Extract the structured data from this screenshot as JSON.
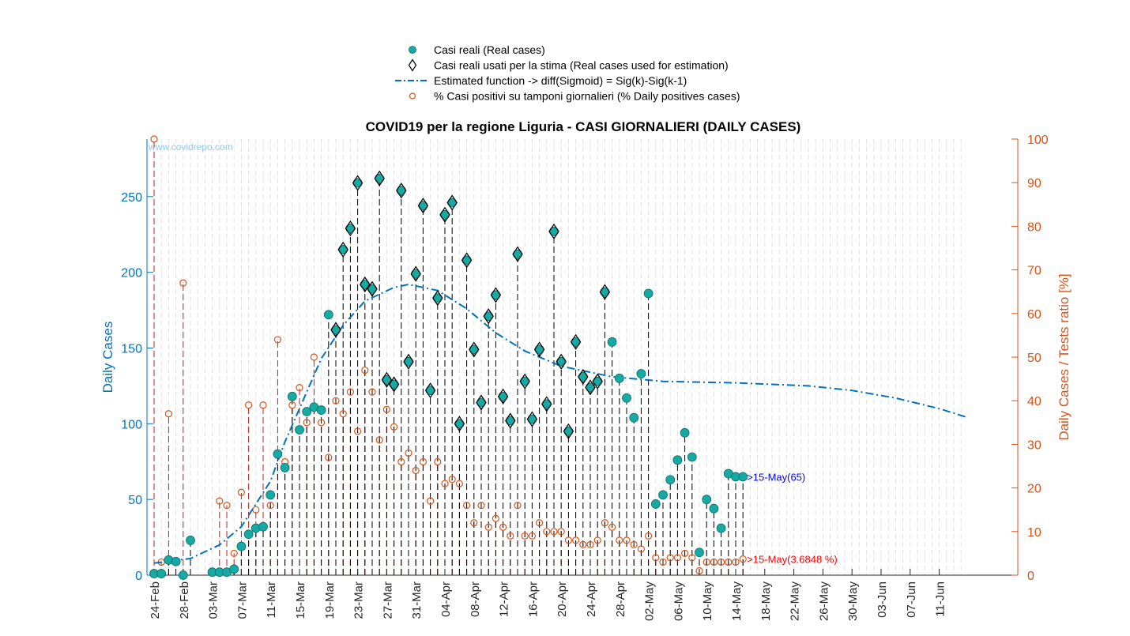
{
  "chart_data": {
    "type": "scatter",
    "title": "COVID19 per la regione Liguria - CASI GIORNALIERI (DAILY CASES)",
    "watermark": "www.covidrepo.com",
    "ylabel": "Daily Cases",
    "y2label": "Daily Cases / Tests ratio [%]",
    "xlabel": "",
    "ylim": [
      0,
      288
    ],
    "y2lim": [
      0,
      100
    ],
    "yticks": [
      0,
      50,
      100,
      150,
      200,
      250
    ],
    "y2ticks": [
      0,
      10,
      20,
      30,
      40,
      50,
      60,
      70,
      80,
      90,
      100
    ],
    "xtick_labels": [
      "24-Feb",
      "28-Feb",
      "03-Mar",
      "07-Mar",
      "11-Mar",
      "15-Mar",
      "19-Mar",
      "23-Mar",
      "27-Mar",
      "31-Mar",
      "04-Apr",
      "08-Apr",
      "12-Apr",
      "16-Apr",
      "20-Apr",
      "24-Apr",
      "28-Apr",
      "02-May",
      "06-May",
      "10-May",
      "14-May",
      "18-May",
      "22-May",
      "26-May",
      "30-May",
      "03-Jun",
      "07-Jun",
      "11-Jun"
    ],
    "legend_position": "top",
    "legend": [
      {
        "label": "Casi reali (Real cases)",
        "marker": "filled-circle",
        "color": "#17a9a3"
      },
      {
        "label": "Casi reali usati per la stima (Real cases used for estimation)",
        "marker": "diamond",
        "color": "#000000"
      },
      {
        "label": "Estimated function -> diff(Sigmoid) = Sig(k)-Sig(k-1)",
        "marker": "dash-dot-line",
        "color": "#0072bd"
      },
      {
        "label": "% Casi positivi su tamponi giornalieri (% Daily positives cases)",
        "marker": "open-circle",
        "color": "#d95319"
      }
    ],
    "grid": false,
    "x_start_date": "24-Feb",
    "series": [
      {
        "name": "Casi reali (Real cases)",
        "values": [
          1,
          1,
          10,
          9,
          0,
          23,
          null,
          null,
          2,
          2,
          2,
          4,
          19,
          27,
          31,
          32,
          53,
          80,
          71,
          118,
          96,
          108,
          111,
          109,
          172,
          null,
          null,
          null,
          null,
          null,
          null,
          null,
          null,
          null,
          null,
          null,
          null,
          null,
          null,
          null,
          null,
          null,
          null,
          null,
          null,
          null,
          null,
          null,
          null,
          null,
          null,
          null,
          null,
          null,
          null,
          null,
          null,
          null,
          null,
          null,
          null,
          null,
          null,
          154,
          130,
          117,
          104,
          133,
          186,
          47,
          53,
          63,
          76,
          94,
          78,
          15,
          50,
          44,
          31,
          67,
          65,
          65
        ]
      },
      {
        "name": "Casi reali usati per la stima (Real cases used for estimation)",
        "values": [
          null,
          null,
          null,
          null,
          null,
          null,
          null,
          null,
          null,
          null,
          null,
          null,
          null,
          null,
          null,
          null,
          null,
          null,
          null,
          null,
          null,
          null,
          null,
          null,
          null,
          162,
          215,
          229,
          259,
          192,
          189,
          262,
          129,
          126,
          254,
          141,
          199,
          244,
          122,
          183,
          238,
          246,
          100,
          208,
          149,
          114,
          171,
          185,
          118,
          102,
          212,
          128,
          103,
          149,
          113,
          227,
          141,
          95,
          154,
          131,
          124,
          128,
          187,
          null,
          null,
          null,
          null,
          null,
          null,
          null,
          null,
          null,
          null,
          null,
          null,
          null,
          null,
          null,
          null,
          null,
          null,
          null
        ]
      },
      {
        "name": "Estimated function -> diff(Sigmoid) = Sig(k)-Sig(k-1)",
        "points": [
          [
            0,
            8
          ],
          [
            5,
            11
          ],
          [
            9,
            20
          ],
          [
            12,
            32
          ],
          [
            16,
            62
          ],
          [
            18,
            88
          ],
          [
            20,
            110
          ],
          [
            23,
            143
          ],
          [
            26,
            165
          ],
          [
            29,
            181
          ],
          [
            33,
            190
          ],
          [
            35,
            192
          ],
          [
            39,
            188
          ],
          [
            43,
            176
          ],
          [
            47,
            160
          ],
          [
            51,
            148
          ],
          [
            56,
            138
          ],
          [
            63,
            131
          ],
          [
            70,
            128
          ],
          [
            80,
            127
          ],
          [
            85,
            126
          ],
          [
            90,
            125
          ],
          [
            96,
            122
          ],
          [
            102,
            117
          ],
          [
            108,
            110
          ],
          [
            112,
            104
          ]
        ]
      },
      {
        "name": "% Casi positivi su tamponi giornalieri (% Daily positives cases)",
        "values": [
          100,
          3,
          37,
          null,
          67,
          null,
          null,
          null,
          null,
          17,
          16,
          5,
          19,
          39,
          15,
          39,
          16,
          54,
          26,
          39,
          43,
          35,
          50,
          35,
          27,
          40,
          37,
          42,
          33,
          47,
          42,
          31,
          38,
          34,
          26,
          28,
          24,
          26,
          17,
          26,
          21,
          22,
          21,
          16,
          12,
          16,
          11,
          13,
          11,
          9,
          16,
          9,
          9,
          12,
          10,
          10,
          10,
          8,
          8,
          7,
          7,
          8,
          12,
          11,
          8,
          8,
          7,
          6,
          9,
          4,
          3,
          4,
          4,
          5,
          4,
          1,
          3,
          3,
          3,
          3,
          3,
          3.6848
        ]
      }
    ],
    "annotations": [
      {
        "text": ">15-May(65)",
        "color": "#0000ff"
      },
      {
        "text": ">15-May(3.6848 %)",
        "color": "#ff0000"
      }
    ],
    "colors": {
      "axis_left": "#0072bd",
      "axis_right": "#d95319",
      "real_cases": "#17a9a3",
      "curve": "#0072bd",
      "percent": "#d95319",
      "watermark": "#8ec8ee"
    }
  }
}
